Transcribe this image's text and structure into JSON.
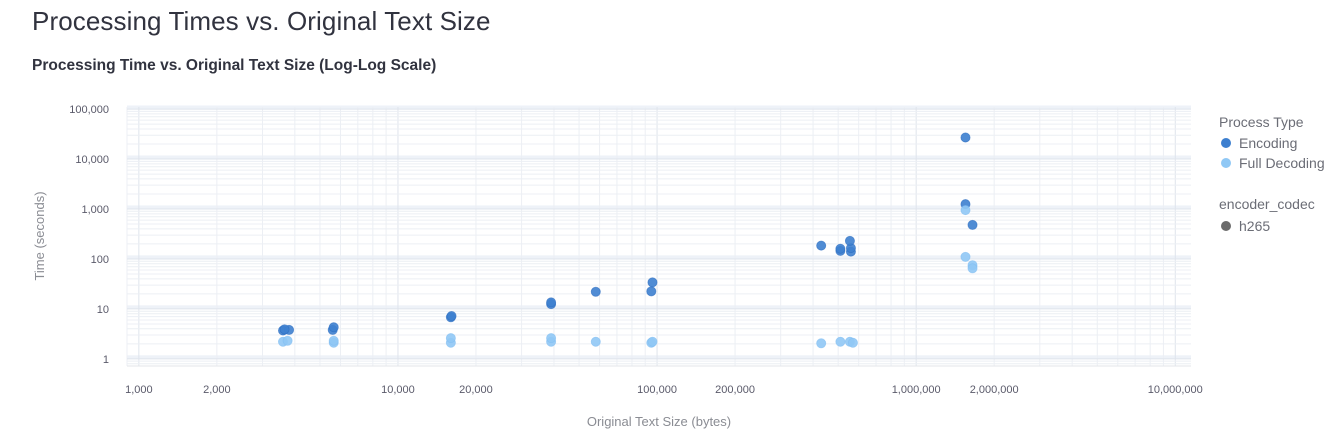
{
  "page_title": "Processing Times vs. Original Text Size",
  "chart_data": {
    "type": "scatter",
    "title": "Processing Time vs. Original Text Size (Log-Log Scale)",
    "xlabel": "Original Text Size (bytes)",
    "ylabel": "Time (seconds)",
    "x_scale": "log",
    "y_scale": "log",
    "xlim": [
      900,
      11500000
    ],
    "ylim": [
      0.72,
      110000
    ],
    "grid": true,
    "legend_position": "right",
    "x_ticks": [
      {
        "value": 1000,
        "label": "1,000"
      },
      {
        "value": 2000,
        "label": "2,000"
      },
      {
        "value": 10000,
        "label": "10,000"
      },
      {
        "value": 20000,
        "label": "20,000"
      },
      {
        "value": 100000,
        "label": "100,000"
      },
      {
        "value": 200000,
        "label": "200,000"
      },
      {
        "value": 1000000,
        "label": "1,000,000"
      },
      {
        "value": 2000000,
        "label": "2,000,000"
      },
      {
        "value": 10000000,
        "label": "10,000,000"
      }
    ],
    "y_ticks": [
      {
        "value": 1,
        "label": "1"
      },
      {
        "value": 10,
        "label": "10"
      },
      {
        "value": 100,
        "label": "100"
      },
      {
        "value": 1000,
        "label": "1,000"
      },
      {
        "value": 10000,
        "label": "10,000"
      },
      {
        "value": 100000,
        "label": "100,000"
      }
    ],
    "legend": {
      "color_title": "Process Type",
      "shape_title": "encoder_codec",
      "shape_items": [
        {
          "label": "h265",
          "color": "#6b6b6b"
        }
      ]
    },
    "series": [
      {
        "name": "Encoding",
        "color": "#3d7fcf",
        "color_dark": "#2a6ac0",
        "points": [
          {
            "x": 3600,
            "y": 3.7
          },
          {
            "x": 3800,
            "y": 3.8
          },
          {
            "x": 3650,
            "y": 3.9
          },
          {
            "x": 5600,
            "y": 3.8
          },
          {
            "x": 5650,
            "y": 4.3
          },
          {
            "x": 16000,
            "y": 6.8
          },
          {
            "x": 16100,
            "y": 7.2
          },
          {
            "x": 39000,
            "y": 12.5
          },
          {
            "x": 39000,
            "y": 13.5
          },
          {
            "x": 58000,
            "y": 22
          },
          {
            "x": 95000,
            "y": 22.5
          },
          {
            "x": 96000,
            "y": 34
          },
          {
            "x": 430000,
            "y": 185
          },
          {
            "x": 510000,
            "y": 145
          },
          {
            "x": 510000,
            "y": 160
          },
          {
            "x": 560000,
            "y": 140
          },
          {
            "x": 560000,
            "y": 165
          },
          {
            "x": 555000,
            "y": 230
          },
          {
            "x": 1550000,
            "y": 1250
          },
          {
            "x": 1550000,
            "y": 27000
          },
          {
            "x": 1650000,
            "y": 480
          }
        ]
      },
      {
        "name": "Full Decoding",
        "color": "#90c8f5",
        "color_dark": "#7ebdf2",
        "points": [
          {
            "x": 3600,
            "y": 2.2
          },
          {
            "x": 3750,
            "y": 2.3
          },
          {
            "x": 5650,
            "y": 2.1
          },
          {
            "x": 5650,
            "y": 2.3
          },
          {
            "x": 16000,
            "y": 2.1
          },
          {
            "x": 16000,
            "y": 2.6
          },
          {
            "x": 39000,
            "y": 2.2
          },
          {
            "x": 39000,
            "y": 2.6
          },
          {
            "x": 58000,
            "y": 2.2
          },
          {
            "x": 95000,
            "y": 2.1
          },
          {
            "x": 96000,
            "y": 2.2
          },
          {
            "x": 430000,
            "y": 2.05
          },
          {
            "x": 510000,
            "y": 2.2
          },
          {
            "x": 555000,
            "y": 2.2
          },
          {
            "x": 570000,
            "y": 2.1
          },
          {
            "x": 1550000,
            "y": 950
          },
          {
            "x": 1550000,
            "y": 110
          },
          {
            "x": 1650000,
            "y": 75
          },
          {
            "x": 1650000,
            "y": 65
          }
        ]
      }
    ]
  }
}
